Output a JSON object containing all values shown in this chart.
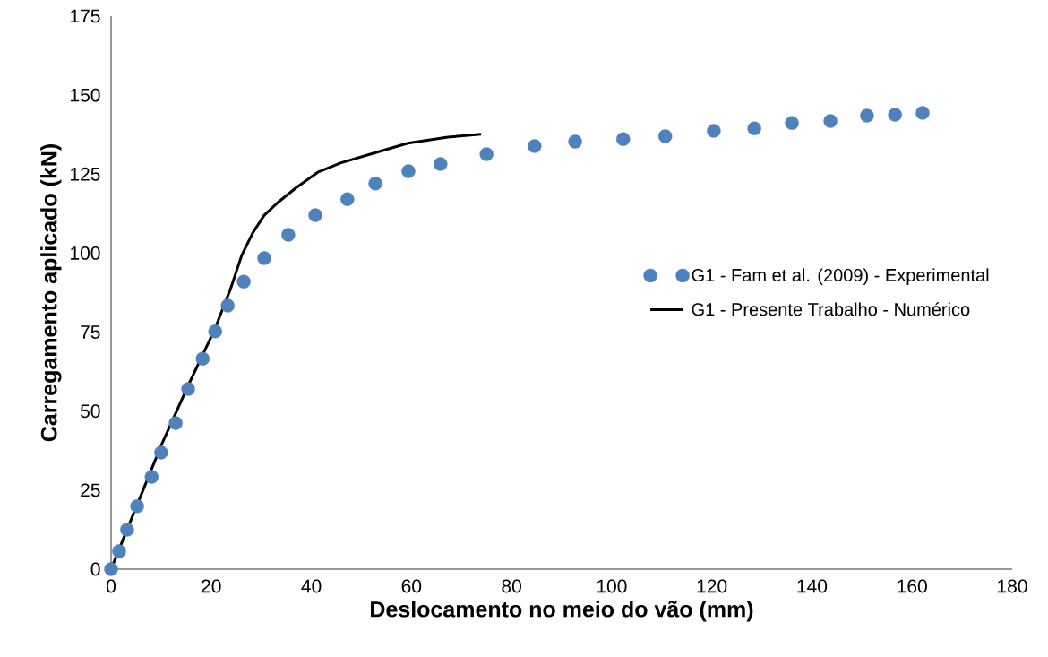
{
  "chart_data": {
    "type": "scatter",
    "xlabel": "Deslocamento no meio do vão (mm)",
    "ylabel": "Carregamento aplicado (kN)",
    "xlim": [
      0,
      180
    ],
    "ylim": [
      0,
      175
    ],
    "xticks": [
      0,
      20,
      40,
      60,
      80,
      100,
      120,
      140,
      160,
      180
    ],
    "yticks": [
      0,
      25,
      50,
      75,
      100,
      125,
      150,
      175
    ],
    "grid": false,
    "legend": "right",
    "series": [
      {
        "name": "G1 - Fam et al. (2009) - Experimental",
        "marker": "circle",
        "color": "#4f81bd",
        "x": [
          0,
          1.6,
          3.2,
          5.2,
          8.1,
          10.0,
          12.9,
          15.4,
          18.3,
          20.8,
          23.3,
          26.5,
          30.6,
          35.4,
          40.8,
          47.2,
          52.8,
          59.4,
          65.8,
          75.0,
          84.6,
          92.7,
          102.3,
          110.7,
          120.4,
          128.5,
          136.0,
          143.7,
          151.0,
          156.6,
          162.1
        ],
        "values": [
          0,
          5.7,
          12.5,
          19.9,
          29.2,
          36.9,
          46.2,
          57.0,
          66.6,
          75.2,
          83.4,
          91.0,
          98.4,
          105.8,
          112.0,
          117.1,
          122.0,
          125.9,
          128.2,
          131.3,
          133.9,
          135.3,
          136.1,
          137.0,
          138.7,
          139.5,
          141.2,
          141.8,
          143.5,
          143.8,
          144.4
        ]
      },
      {
        "name": "G1 - Presente Trabalho - Numérico",
        "type": "line",
        "marker": "none",
        "line_style": "solid",
        "color": "#000000",
        "x": [
          0,
          4.7,
          10.0,
          15.4,
          20.8,
          24.0,
          26.1,
          28.3,
          30.6,
          33.3,
          36.9,
          41.4,
          45.8,
          53.0,
          59.3,
          67.3,
          73.9
        ],
        "values": [
          0,
          18.4,
          39.1,
          58.1,
          76.2,
          89.3,
          99.3,
          106.4,
          112.0,
          116.0,
          120.6,
          125.7,
          128.5,
          131.9,
          134.8,
          136.7,
          137.6
        ]
      }
    ]
  }
}
